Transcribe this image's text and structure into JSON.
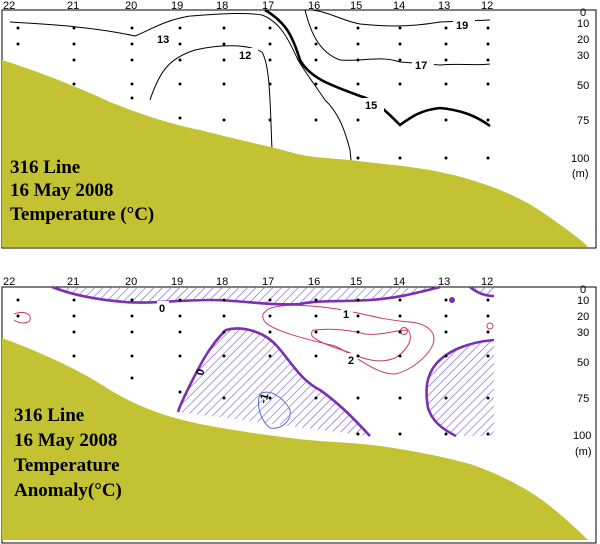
{
  "chart_data": [
    {
      "type": "contour",
      "panel": "top",
      "title_lines": [
        "316 Line",
        "16 May 2008",
        "Temperature (°C)"
      ],
      "stations": [
        "22",
        "21",
        "20",
        "19",
        "18",
        "17",
        "16",
        "15",
        "14",
        "13",
        "12"
      ],
      "depth_ticks": [
        "0",
        "10",
        "20",
        "30",
        "50",
        "75",
        "100"
      ],
      "depth_unit": "(m)",
      "contour_levels": [
        "19",
        "17",
        "15",
        "13",
        "12"
      ]
    },
    {
      "type": "contour",
      "panel": "bottom",
      "title_lines": [
        "316 Line",
        "16 May 2008",
        "Temperature",
        "Anomaly(°C)"
      ],
      "stations": [
        "22",
        "21",
        "20",
        "19",
        "18",
        "17",
        "16",
        "15",
        "14",
        "13",
        "12"
      ],
      "depth_ticks": [
        "0",
        "10",
        "20",
        "30",
        "50",
        "75",
        "100"
      ],
      "depth_unit": "(m)",
      "contour_levels": [
        "0",
        "1",
        "2",
        "0",
        "-1"
      ],
      "hatched": "negative anomaly"
    }
  ],
  "colors": {
    "land": "#c2c233",
    "negative_contour": "#7a2fb5",
    "positive_contour": "#c63a6e",
    "minus_one_contour": "#5a6ad0",
    "hatch": "#7a64d8"
  }
}
